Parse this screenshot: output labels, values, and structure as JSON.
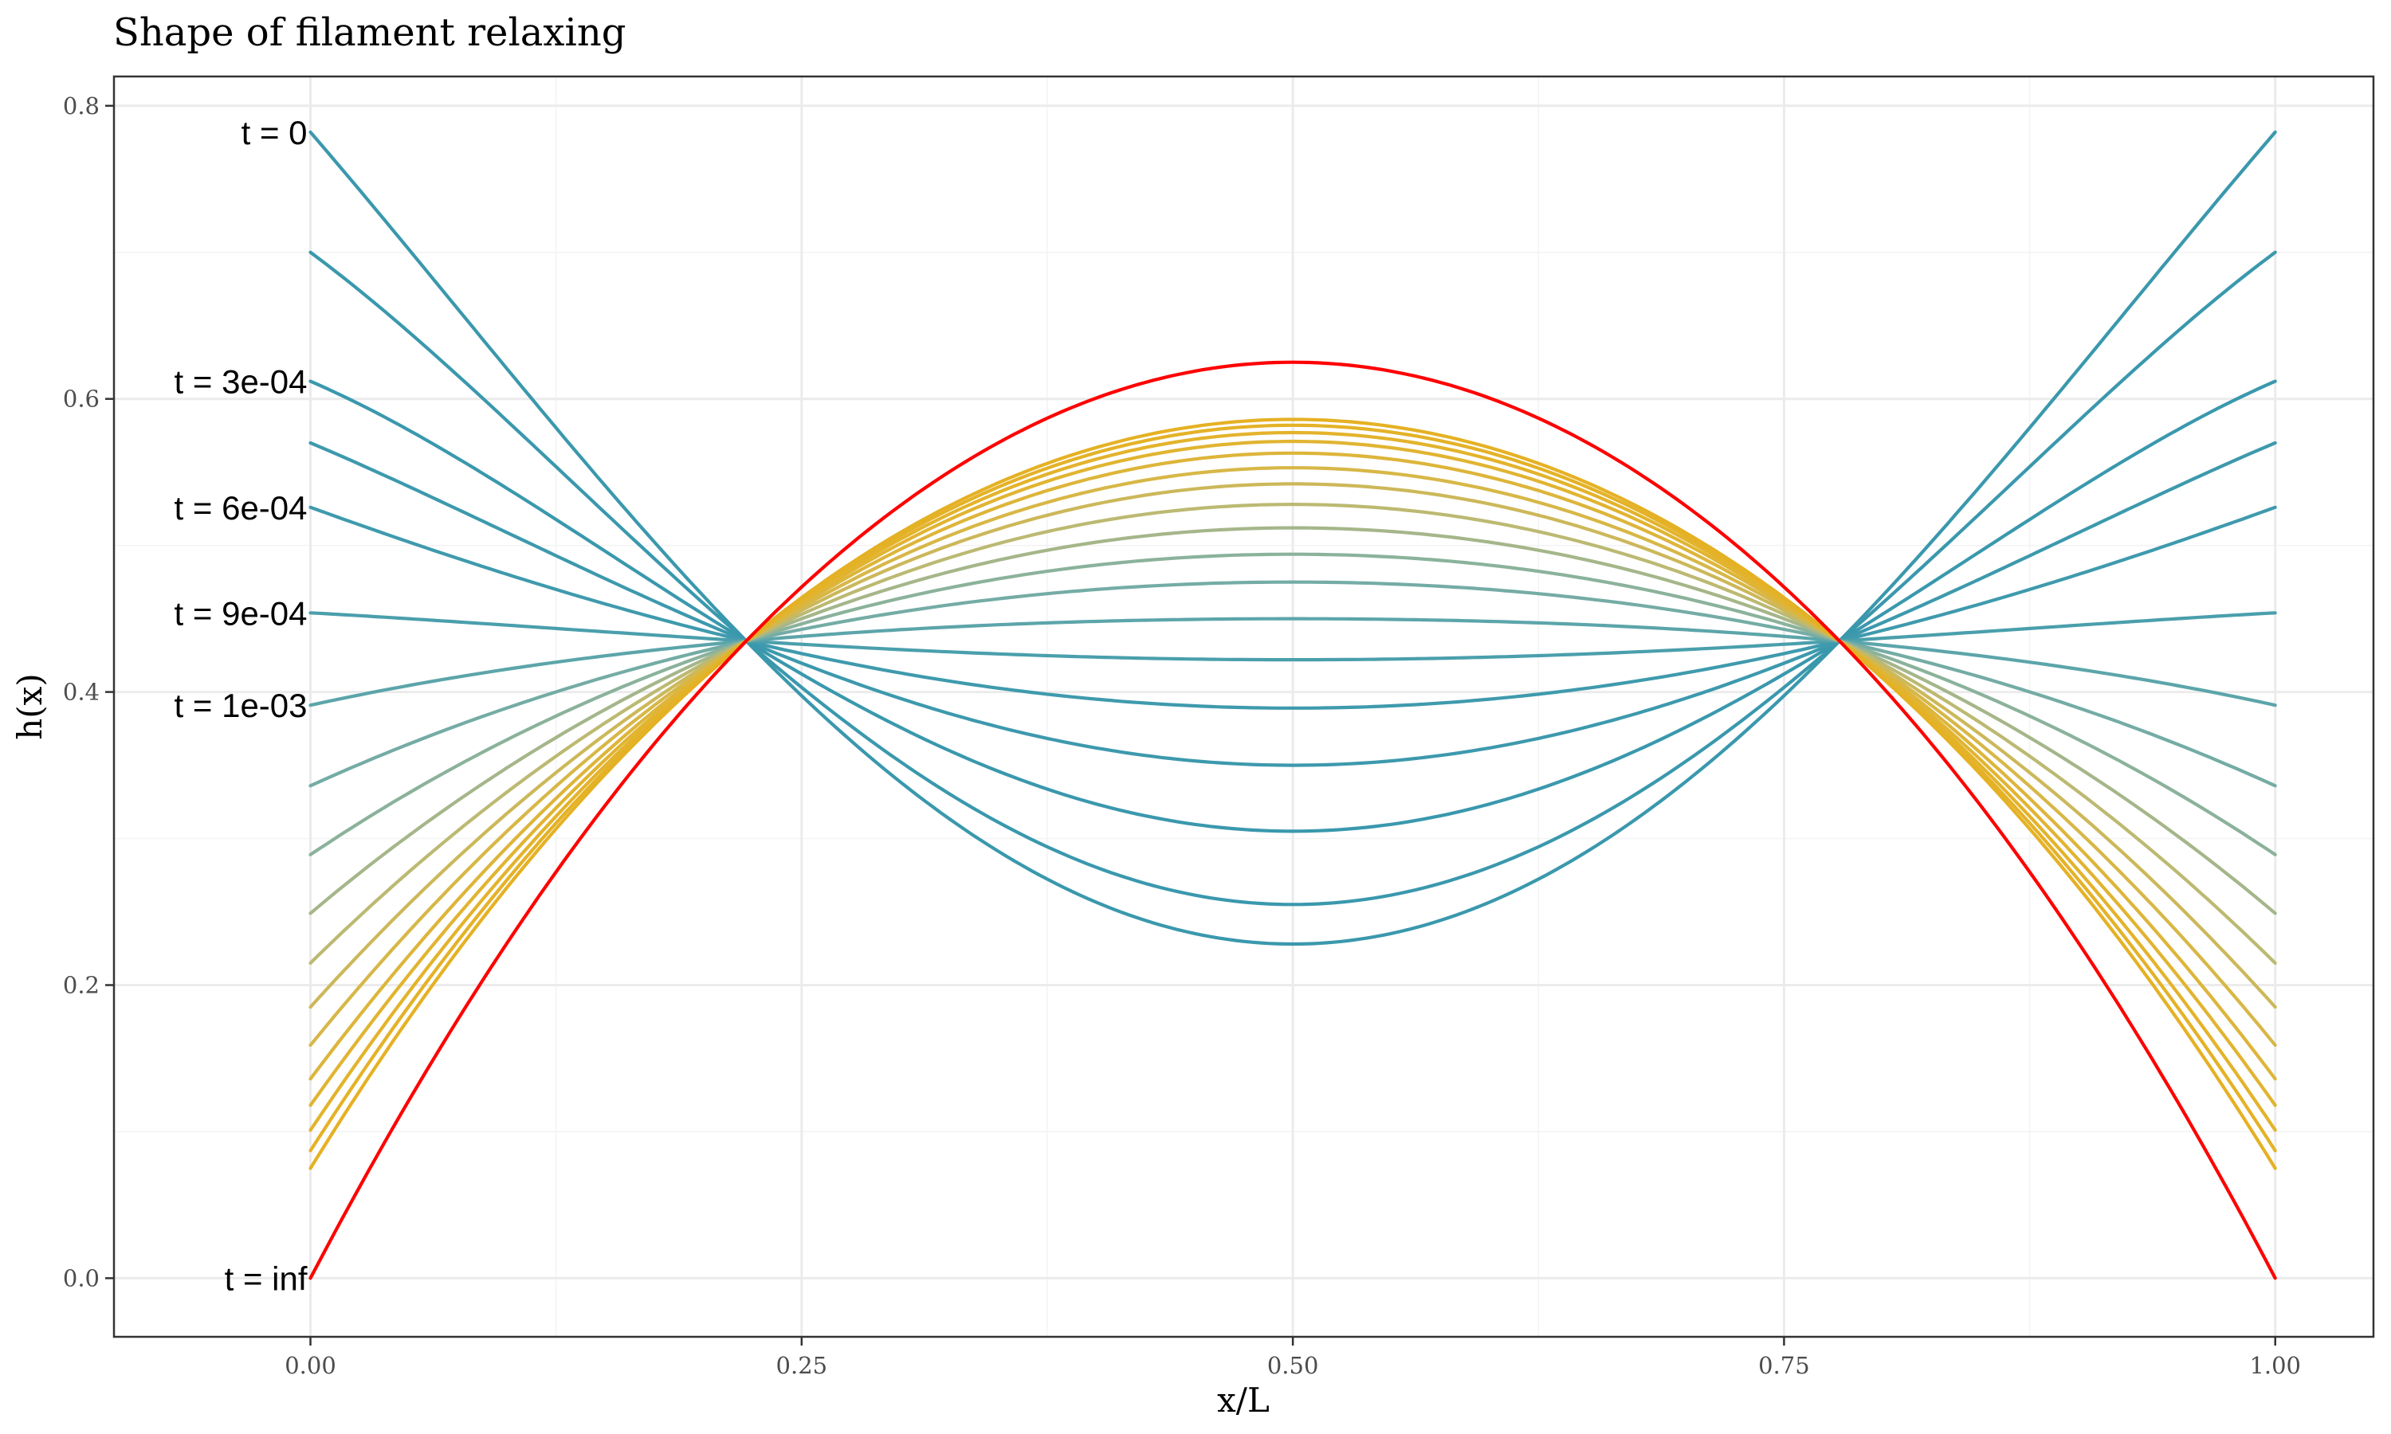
{
  "chart_data": {
    "type": "line",
    "title": "Shape of filament relaxing",
    "xlabel": "x/L",
    "ylabel": "h(x)",
    "xlim": [
      -0.1,
      1.05
    ],
    "ylim": [
      -0.04,
      0.82
    ],
    "x_ticks": [
      0,
      0.25,
      0.5,
      0.75,
      1
    ],
    "x_tick_labels": [
      "0.00",
      "0.25",
      "0.50",
      "0.75",
      "1.00"
    ],
    "y_ticks": [
      0,
      0.2,
      0.4,
      0.6,
      0.8
    ],
    "y_tick_labels": [
      "0.0",
      "0.2",
      "0.4",
      "0.6",
      "0.8"
    ],
    "grid": true,
    "legend": "none",
    "crossing_points": {
      "x": [
        0.2218,
        0.7782
      ],
      "y": 0.4348
    },
    "series": [
      {
        "label": "t = 0",
        "color": "#3a98ad",
        "endpoint": 0.782,
        "mid": 0.228
      },
      {
        "label": "",
        "color": "#3a98ad",
        "endpoint": 0.7,
        "mid": 0.255
      },
      {
        "label": "t = 3e-04",
        "color": "#3a98ad",
        "endpoint": 0.612,
        "mid": 0.305
      },
      {
        "label": "",
        "color": "#3d99ad",
        "endpoint": 0.57,
        "mid": 0.35
      },
      {
        "label": "t = 6e-04",
        "color": "#3f9aad",
        "endpoint": 0.526,
        "mid": 0.389
      },
      {
        "label": "t = 9e-04",
        "color": "#4a9fac",
        "endpoint": 0.454,
        "mid": 0.422
      },
      {
        "label": "t = 1e-03",
        "color": "#5ca5aa",
        "endpoint": 0.391,
        "mid": 0.45
      },
      {
        "label": "",
        "color": "#74aca5",
        "endpoint": 0.336,
        "mid": 0.475
      },
      {
        "label": "",
        "color": "#8bb29b",
        "endpoint": 0.289,
        "mid": 0.494
      },
      {
        "label": "",
        "color": "#a5b68a",
        "endpoint": 0.249,
        "mid": 0.512
      },
      {
        "label": "",
        "color": "#bcb972",
        "endpoint": 0.215,
        "mid": 0.528
      },
      {
        "label": "",
        "color": "#ccb85a",
        "endpoint": 0.185,
        "mid": 0.542
      },
      {
        "label": "",
        "color": "#d7b747",
        "endpoint": 0.159,
        "mid": 0.553
      },
      {
        "label": "",
        "color": "#ddb53a",
        "endpoint": 0.136,
        "mid": 0.563
      },
      {
        "label": "",
        "color": "#e1b431",
        "endpoint": 0.118,
        "mid": 0.571
      },
      {
        "label": "",
        "color": "#e3b32b",
        "endpoint": 0.101,
        "mid": 0.577
      },
      {
        "label": "",
        "color": "#e4b227",
        "endpoint": 0.087,
        "mid": 0.582
      },
      {
        "label": "",
        "color": "#e5b124",
        "endpoint": 0.075,
        "mid": 0.586
      },
      {
        "label": "t = inf",
        "color": "#ff0000",
        "endpoint": 0.0,
        "mid": 0.625
      }
    ]
  }
}
